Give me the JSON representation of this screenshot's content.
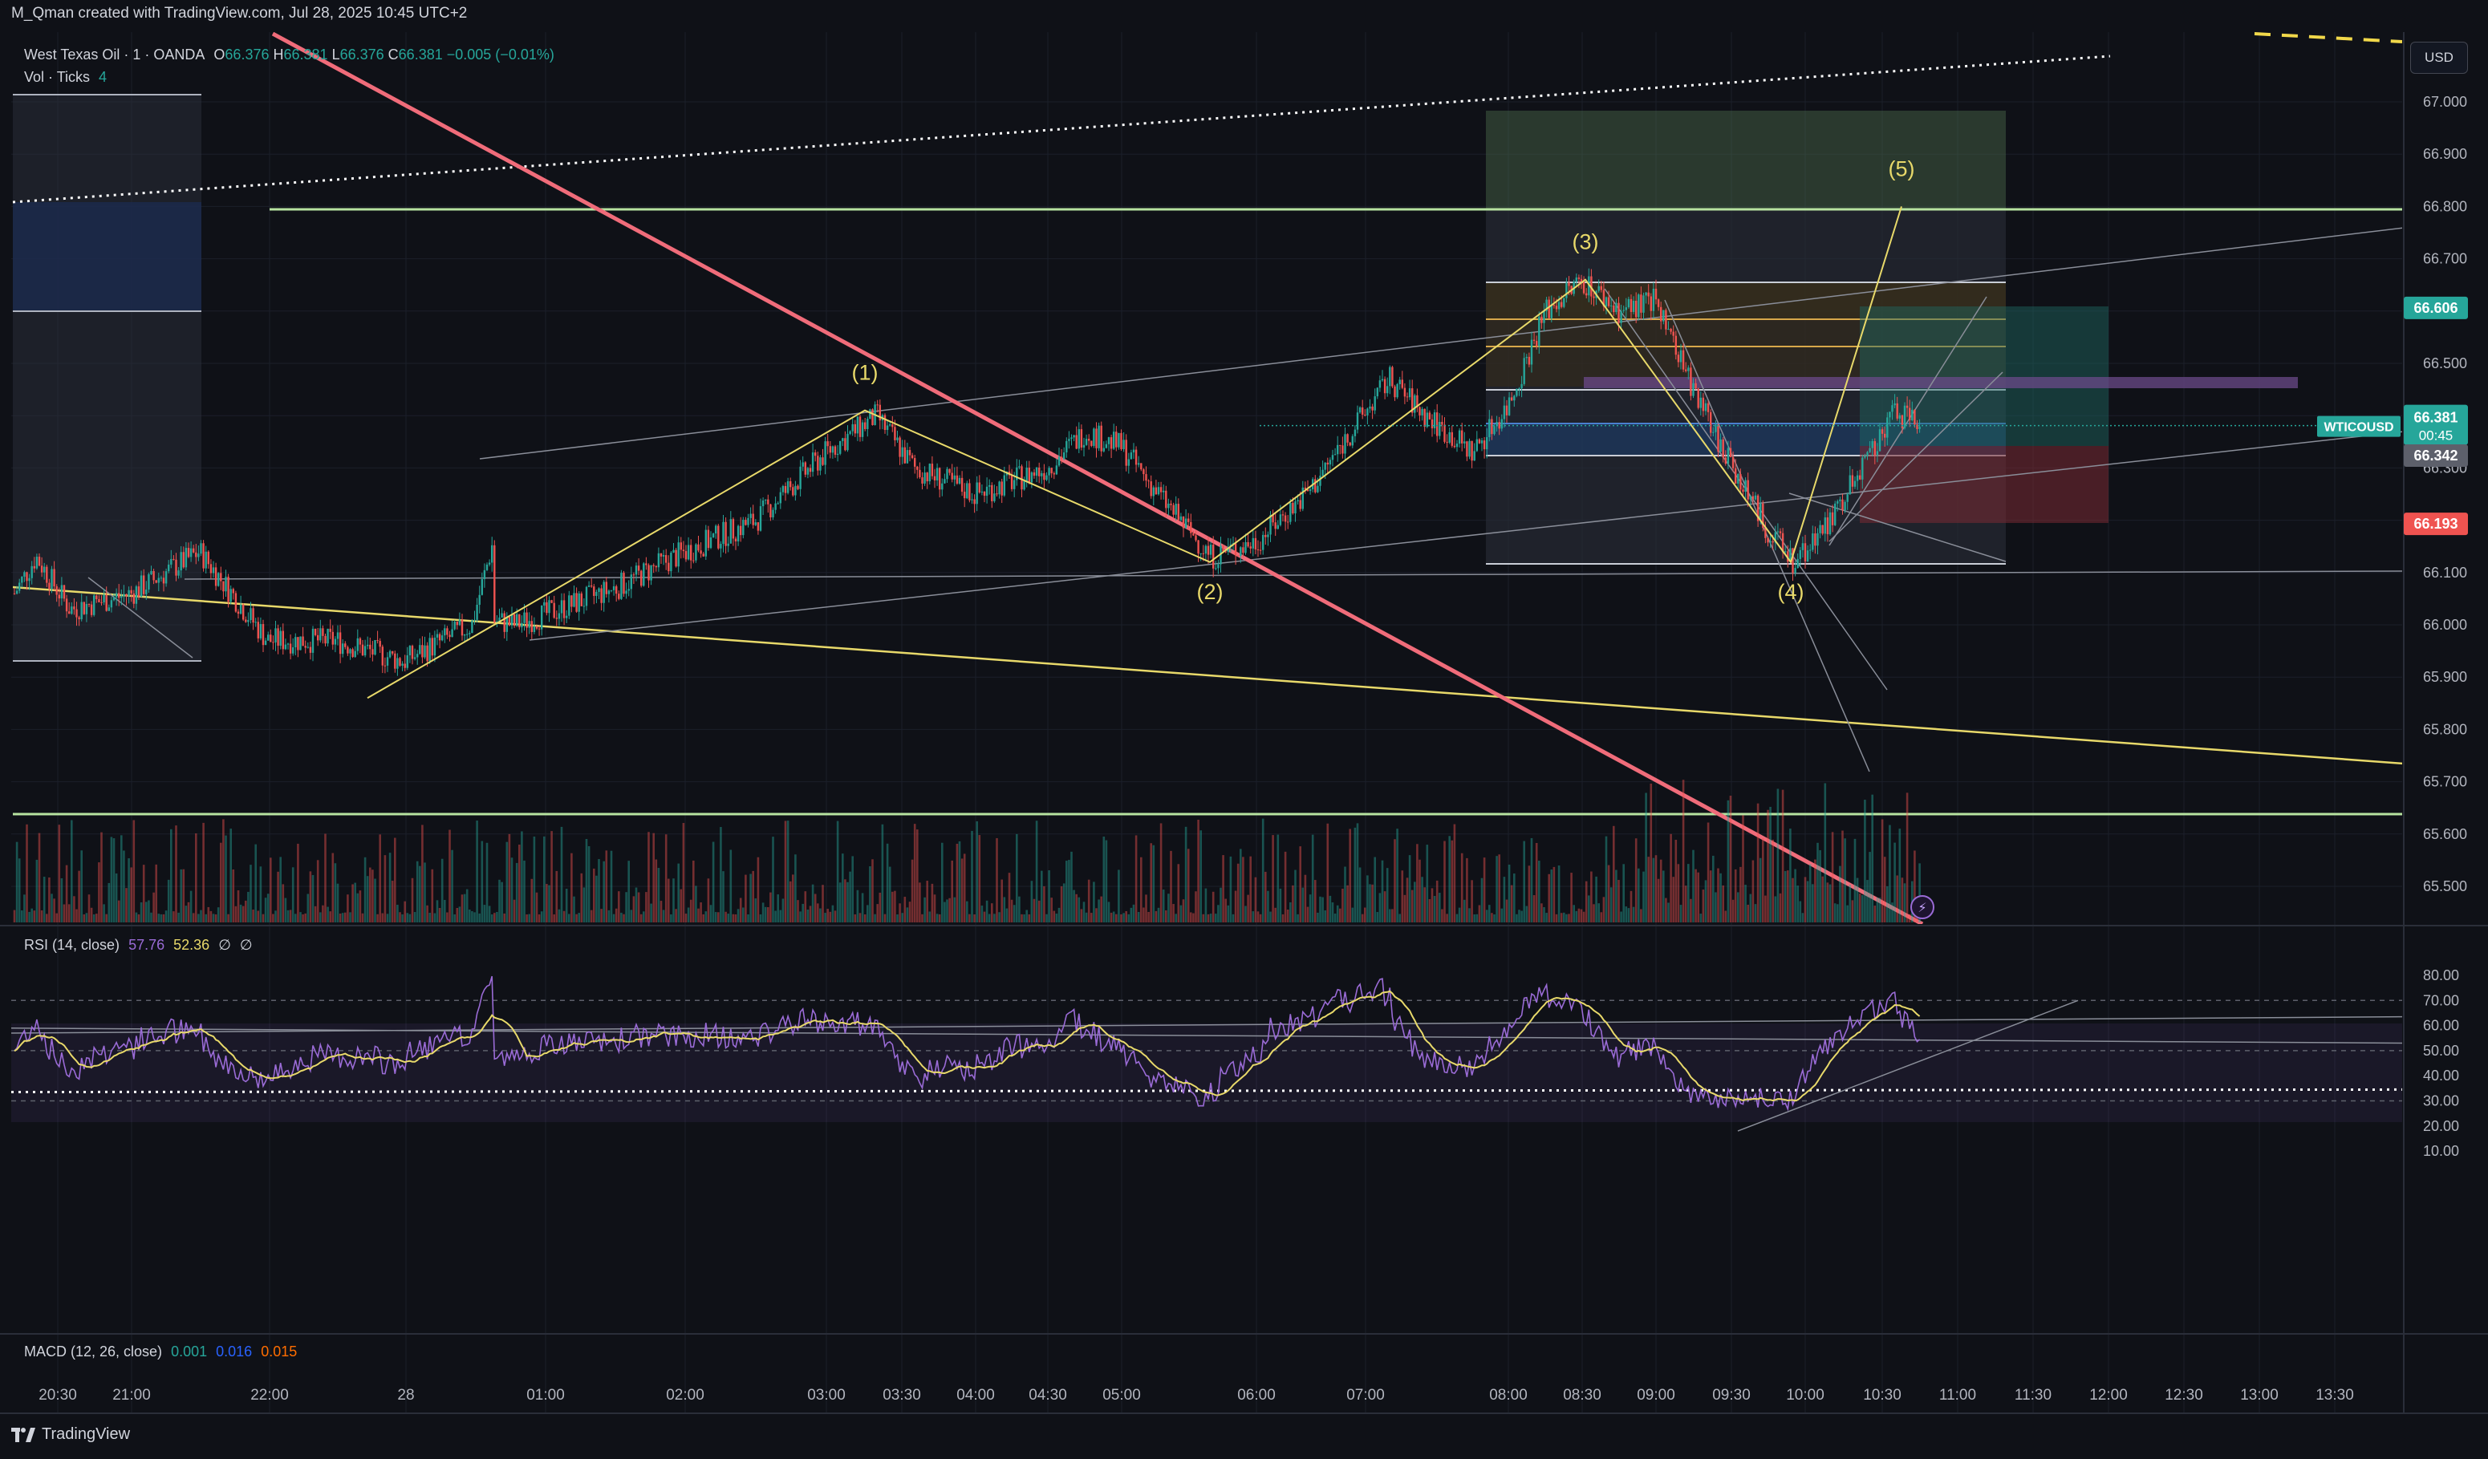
{
  "header": {
    "credit": "M_Qman created with TradingView.com, Jul 28, 2025 10:45 UTC+2"
  },
  "legend": {
    "symbol": "West Texas Oil · 1 · OANDA",
    "o_label": "O",
    "o": "66.376",
    "h_label": "H",
    "h": "66.381",
    "l_label": "L",
    "l": "66.376",
    "c_label": "C",
    "c": "66.381",
    "change": "−0.005 (−0.01%)",
    "vol": "Vol · Ticks",
    "vol_value": "4",
    "rsi": "RSI (14, close)",
    "rsi_value": "57.76",
    "rsi_ma": "52.36",
    "rsi_empty1": "∅",
    "rsi_empty2": "∅",
    "macd": "MACD (12, 26, close)",
    "macd_v1": "0.001",
    "macd_v2": "0.016",
    "macd_v3": "0.015"
  },
  "currency_button": "USD",
  "footer": {
    "brand": "TradingView"
  },
  "colors": {
    "background": "#0f1117",
    "up": "#26a69a",
    "down": "#ef5350",
    "trend_red": "#f06c7a",
    "wave_yellow": "#e8d96a",
    "green_line": "#b7e3a0",
    "rsi_purple": "#9a6bd6",
    "rsi_ma": "#e8d96a"
  },
  "chart_data": {
    "type": "candlestick",
    "symbol": "West Texas Oil · 1 · OANDA",
    "price_axis": {
      "ticks": [
        "67.000",
        "66.900",
        "66.800",
        "66.700",
        "66.600",
        "66.500",
        "66.400",
        "66.300",
        "66.200",
        "66.100",
        "66.000",
        "65.900",
        "65.800",
        "65.700",
        "65.600",
        "65.500"
      ],
      "range": [
        65.42,
        67.05
      ]
    },
    "price_labels": [
      {
        "value": "66.606",
        "kind": "target",
        "color": "#26a69a"
      },
      {
        "value": "66.381",
        "kind": "last",
        "color": "#26a69a",
        "name": "WTICOUSD",
        "countdown": "00:45"
      },
      {
        "value": "66.342",
        "kind": "entry",
        "color": "#5d606b"
      },
      {
        "value": "66.193",
        "kind": "stop",
        "color": "#ef5350"
      }
    ],
    "time_axis": [
      "20:30",
      "21:00",
      "22:00",
      "28",
      "01:00",
      "02:00",
      "03:00",
      "03:30",
      "04:00",
      "04:30",
      "05:00",
      "06:00",
      "07:00",
      "08:00",
      "08:30",
      "09:00",
      "09:30",
      "10:00",
      "10:30",
      "11:00",
      "11:30",
      "12:00",
      "12:30",
      "13:00",
      "13:30"
    ],
    "waves": [
      {
        "label": "(1)",
        "price": 66.41
      },
      {
        "label": "(2)",
        "price": 66.12
      },
      {
        "label": "(3)",
        "price": 66.66
      },
      {
        "label": "(4)",
        "price": 66.12
      },
      {
        "label": "(5)",
        "price": 66.8
      }
    ],
    "price_path": [
      {
        "t": "20:10",
        "p": 66.06
      },
      {
        "t": "20:20",
        "p": 66.13
      },
      {
        "t": "20:35",
        "p": 66.03
      },
      {
        "t": "21:00",
        "p": 66.06
      },
      {
        "t": "21:30",
        "p": 66.14
      },
      {
        "t": "22:00",
        "p": 65.97
      },
      {
        "t": "22:30",
        "p": 65.97
      },
      {
        "t": "23:00",
        "p": 65.93
      },
      {
        "t": "23:30",
        "p": 66.0
      },
      {
        "t": "23:40",
        "p": 66.17
      },
      {
        "t": "00:10",
        "p": 66.02
      },
      {
        "t": "00:40",
        "p": 66.0
      },
      {
        "t": "01:00",
        "p": 66.02
      },
      {
        "t": "01:30",
        "p": 66.07
      },
      {
        "t": "02:00",
        "p": 66.14
      },
      {
        "t": "02:30",
        "p": 66.2
      },
      {
        "t": "03:00",
        "p": 66.33
      },
      {
        "t": "03:20",
        "p": 66.4
      },
      {
        "t": "03:35",
        "p": 66.3
      },
      {
        "t": "04:00",
        "p": 66.25
      },
      {
        "t": "04:30",
        "p": 66.3
      },
      {
        "t": "04:45",
        "p": 66.37
      },
      {
        "t": "05:00",
        "p": 66.34
      },
      {
        "t": "05:20",
        "p": 66.23
      },
      {
        "t": "05:40",
        "p": 66.13
      },
      {
        "t": "06:00",
        "p": 66.16
      },
      {
        "t": "06:30",
        "p": 66.26
      },
      {
        "t": "06:50",
        "p": 66.36
      },
      {
        "t": "07:10",
        "p": 66.47
      },
      {
        "t": "07:25",
        "p": 66.4
      },
      {
        "t": "07:45",
        "p": 66.33
      },
      {
        "t": "08:00",
        "p": 66.42
      },
      {
        "t": "08:15",
        "p": 66.6
      },
      {
        "t": "08:30",
        "p": 66.66
      },
      {
        "t": "08:45",
        "p": 66.6
      },
      {
        "t": "09:00",
        "p": 66.62
      },
      {
        "t": "09:10",
        "p": 66.5
      },
      {
        "t": "09:25",
        "p": 66.35
      },
      {
        "t": "09:45",
        "p": 66.18
      },
      {
        "t": "09:55",
        "p": 66.12
      },
      {
        "t": "10:10",
        "p": 66.2
      },
      {
        "t": "10:25",
        "p": 66.33
      },
      {
        "t": "10:35",
        "p": 66.41
      },
      {
        "t": "10:45",
        "p": 66.38
      }
    ],
    "rsi": {
      "name": "RSI (14, close)",
      "value": 57.76,
      "ma": 52.36,
      "ticks": [
        "80.00",
        "70.00",
        "60.00",
        "50.00",
        "40.00",
        "30.00",
        "20.00",
        "10.00"
      ],
      "range": [
        5,
        88
      ]
    },
    "macd": {
      "name": "MACD (12, 26, close)",
      "macd": 0.001,
      "signal": 0.016,
      "histogram": 0.015
    }
  }
}
